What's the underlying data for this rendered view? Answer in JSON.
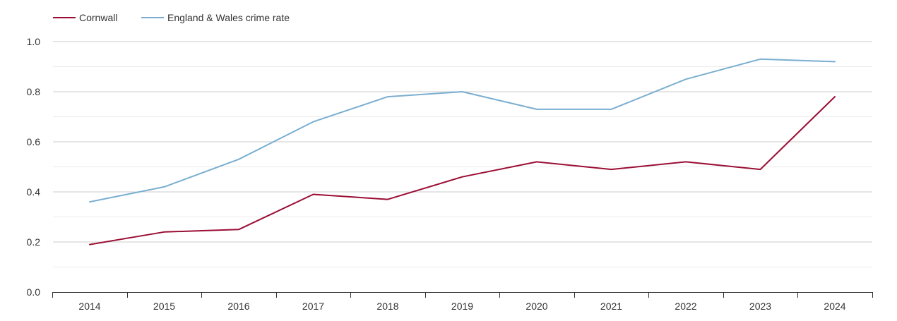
{
  "chart_data": {
    "type": "line",
    "title": "",
    "xlabel": "",
    "ylabel": "",
    "categories": [
      "2014",
      "2015",
      "2016",
      "2017",
      "2018",
      "2019",
      "2020",
      "2021",
      "2022",
      "2023",
      "2024"
    ],
    "y_ticks": [
      "0.0",
      "0.2",
      "0.4",
      "0.6",
      "0.8",
      "1.0"
    ],
    "ylim": [
      0,
      1.0
    ],
    "grid": true,
    "legend_position": "top-left",
    "series": [
      {
        "name": "Cornwall",
        "color": "#9b0e34",
        "values": [
          0.19,
          0.24,
          0.25,
          0.39,
          0.37,
          0.46,
          0.52,
          0.49,
          0.52,
          0.49,
          0.78
        ]
      },
      {
        "name": "England & Wales crime rate",
        "color": "#7aaed0",
        "values": [
          0.36,
          0.42,
          0.53,
          0.68,
          0.78,
          0.8,
          0.73,
          0.73,
          0.85,
          0.93,
          0.92
        ]
      }
    ]
  }
}
